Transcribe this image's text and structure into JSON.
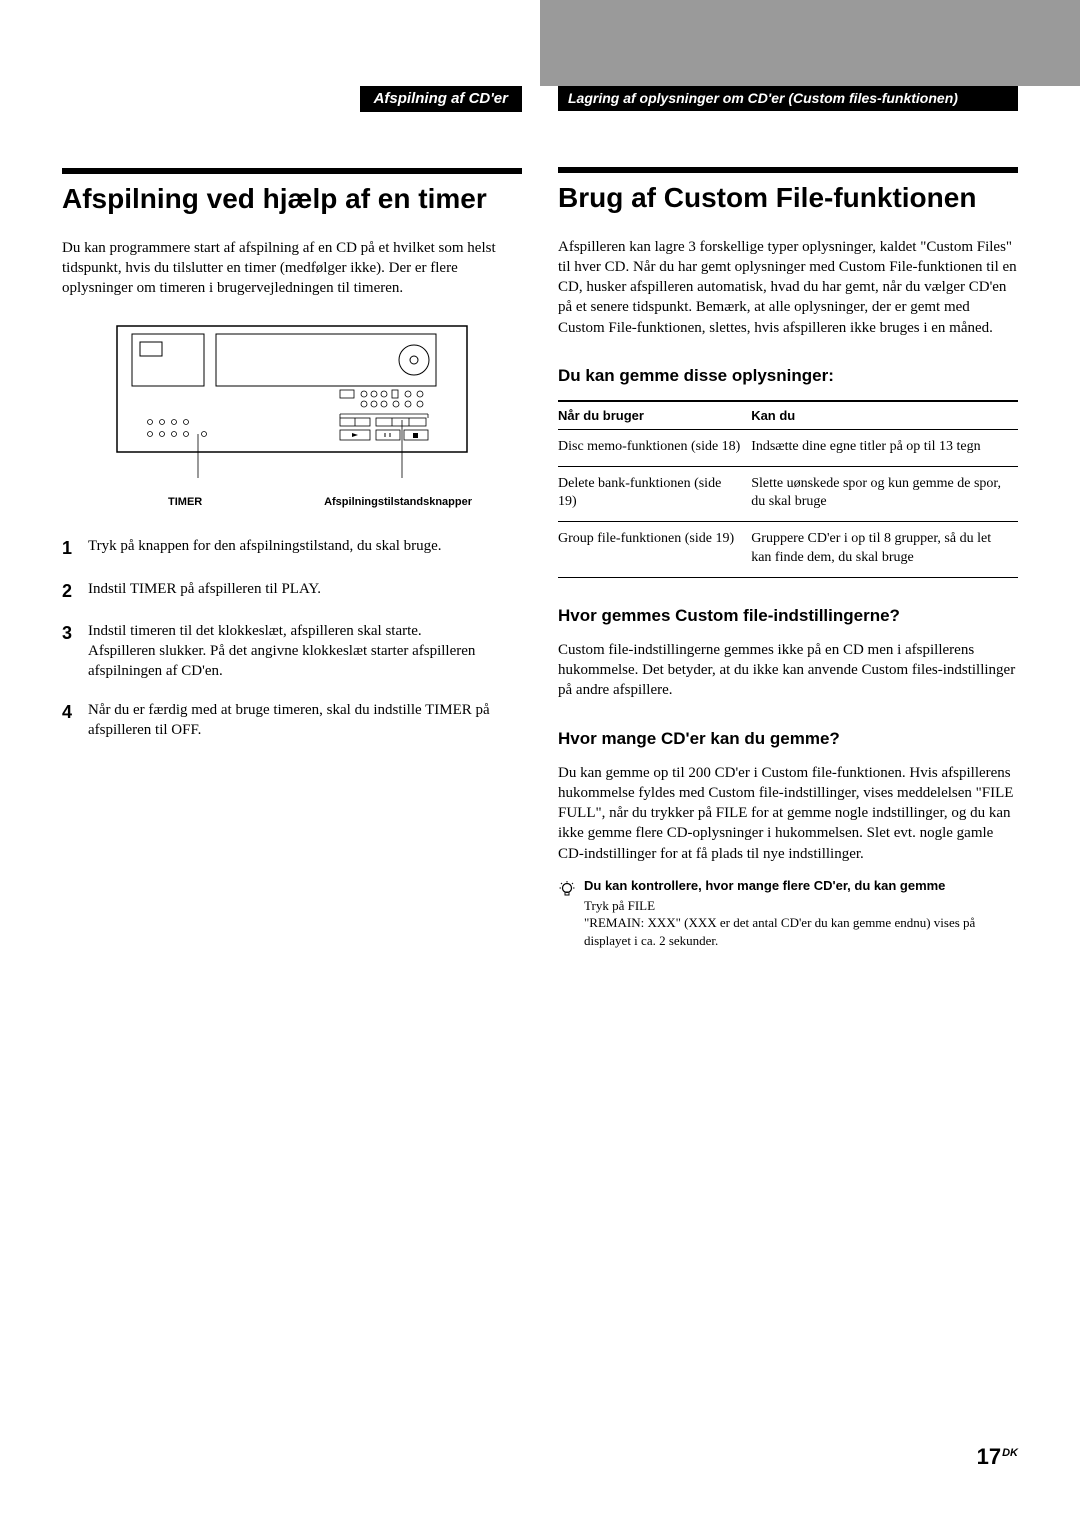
{
  "tabs": {
    "left": "Afspilning af CD'er",
    "right": "Lagring af oplysninger om CD'er (Custom files-funktionen)"
  },
  "left_column": {
    "heading": "Afspilning ved hjælp af en timer",
    "intro": "Du kan programmere start af afspilning af en CD på et hvilket som helst tidspunkt, hvis du tilslutter en timer (medfølger ikke). Der er flere oplysninger om timeren i brugervejledningen til timeren.",
    "figure": {
      "label_left": "TIMER",
      "label_right": "Afspilningstilstandsknapper"
    },
    "steps": [
      "Tryk på knappen for den afspilningstilstand, du skal bruge.",
      "Indstil TIMER på afspilleren til PLAY.",
      "Indstil timeren til det klokkeslæt, afspilleren skal starte.\nAfspilleren slukker. På det angivne klokkeslæt starter afspilleren afspilningen af CD'en.",
      "Når du er færdig med at bruge timeren, skal du indstille TIMER på afspilleren til OFF."
    ]
  },
  "right_column": {
    "heading": "Brug af Custom File-funktionen",
    "intro": "Afspilleren kan lagre 3 forskellige typer oplysninger, kaldet \"Custom Files\" til hver CD. Når du har gemt oplysninger med Custom File-funktionen til en CD, husker afspilleren automatisk, hvad du har gemt, når du vælger CD'en på et senere tidspunkt. Bemærk, at alle oplysninger, der er gemt med Custom File-funktionen, slettes, hvis afspilleren ikke bruges i en måned.",
    "table_heading": "Du kan gemme disse oplysninger:",
    "table": {
      "headers": [
        "Når du bruger",
        "Kan du"
      ],
      "rows": [
        [
          "Disc memo-funktionen (side 18)",
          "Indsætte dine egne titler på op til 13 tegn"
        ],
        [
          "Delete bank-funktionen (side 19)",
          "Slette uønskede spor og kun gemme de spor, du skal bruge"
        ],
        [
          "Group file-funktionen (side 19)",
          "Gruppere CD'er i op til 8 grupper, så du let kan finde dem, du skal bruge"
        ]
      ]
    },
    "section2_heading": "Hvor gemmes Custom file-indstillingerne?",
    "section2_body": "Custom file-indstillingerne gemmes ikke på en CD men i afspillerens hukommelse. Det betyder, at du ikke kan anvende Custom files-indstillinger på andre afspillere.",
    "section3_heading": "Hvor mange CD'er kan du gemme?",
    "section3_body": "Du kan gemme op til 200 CD'er i Custom file-funktionen. Hvis afspillerens hukommelse fyldes med Custom file-indstillinger, vises meddelelsen \"FILE FULL\", når du trykker på FILE for at gemme nogle indstillinger, og du kan ikke gemme flere CD-oplysninger i hukommelsen. Slet evt. nogle gamle CD-indstillinger for at få plads til nye indstillinger.",
    "tip": {
      "title": "Du kan kontrollere, hvor mange flere CD'er, du kan gemme",
      "line1": "Tryk på FILE",
      "line2": "\"REMAIN: XXX\" (XXX er det antal CD'er du kan gemme endnu) vises på displayet i ca. 2 sekunder."
    }
  },
  "page_number": "17",
  "page_suffix": "DK",
  "colors": {
    "black": "#000000",
    "white": "#ffffff",
    "gray": "#9a9a9a"
  }
}
